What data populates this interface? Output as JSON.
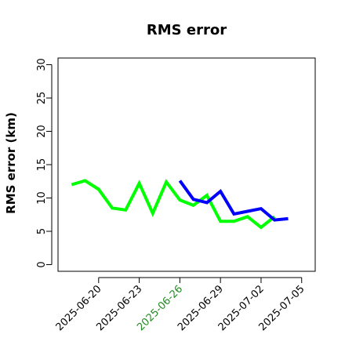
{
  "chart_data": {
    "type": "line",
    "title": "RMS error",
    "xlabel": "",
    "ylabel": "RMS error (km)",
    "x_axis_type": "date",
    "xlim": [
      "2025-06-17",
      "2025-07-06"
    ],
    "ylim": [
      -1,
      31
    ],
    "y_ticks": [
      0,
      5,
      10,
      15,
      20,
      25,
      30
    ],
    "x_ticks": [
      "2025-06-20",
      "2025-06-23",
      "2025-06-26",
      "2025-06-29",
      "2025-07-02",
      "2025-07-05"
    ],
    "highlighted_x_tick": "2025-06-26",
    "highlight_color": "#228b22",
    "grid": false,
    "legend": "none",
    "series": [
      {
        "color": "#00ff00",
        "x": [
          "2025-06-18",
          "2025-06-19",
          "2025-06-20",
          "2025-06-21",
          "2025-06-22",
          "2025-06-23",
          "2025-06-24",
          "2025-06-25",
          "2025-06-26",
          "2025-06-27",
          "2025-06-28",
          "2025-06-29",
          "2025-06-30",
          "2025-07-01",
          "2025-07-02",
          "2025-07-03",
          "2025-07-04"
        ],
        "values": [
          12.0,
          12.6,
          11.3,
          8.5,
          8.2,
          12.2,
          7.7,
          12.4,
          9.7,
          8.9,
          10.4,
          6.5,
          6.5,
          7.2,
          5.6,
          7.2,
          null
        ]
      },
      {
        "color": "#0000ff",
        "x": [
          "2025-06-26",
          "2025-06-27",
          "2025-06-28",
          "2025-06-29",
          "2025-06-30",
          "2025-07-01",
          "2025-07-02",
          "2025-07-03",
          "2025-07-04"
        ],
        "values": [
          12.6,
          9.8,
          9.3,
          11.0,
          7.6,
          8.0,
          8.4,
          6.7,
          6.9
        ]
      }
    ]
  }
}
